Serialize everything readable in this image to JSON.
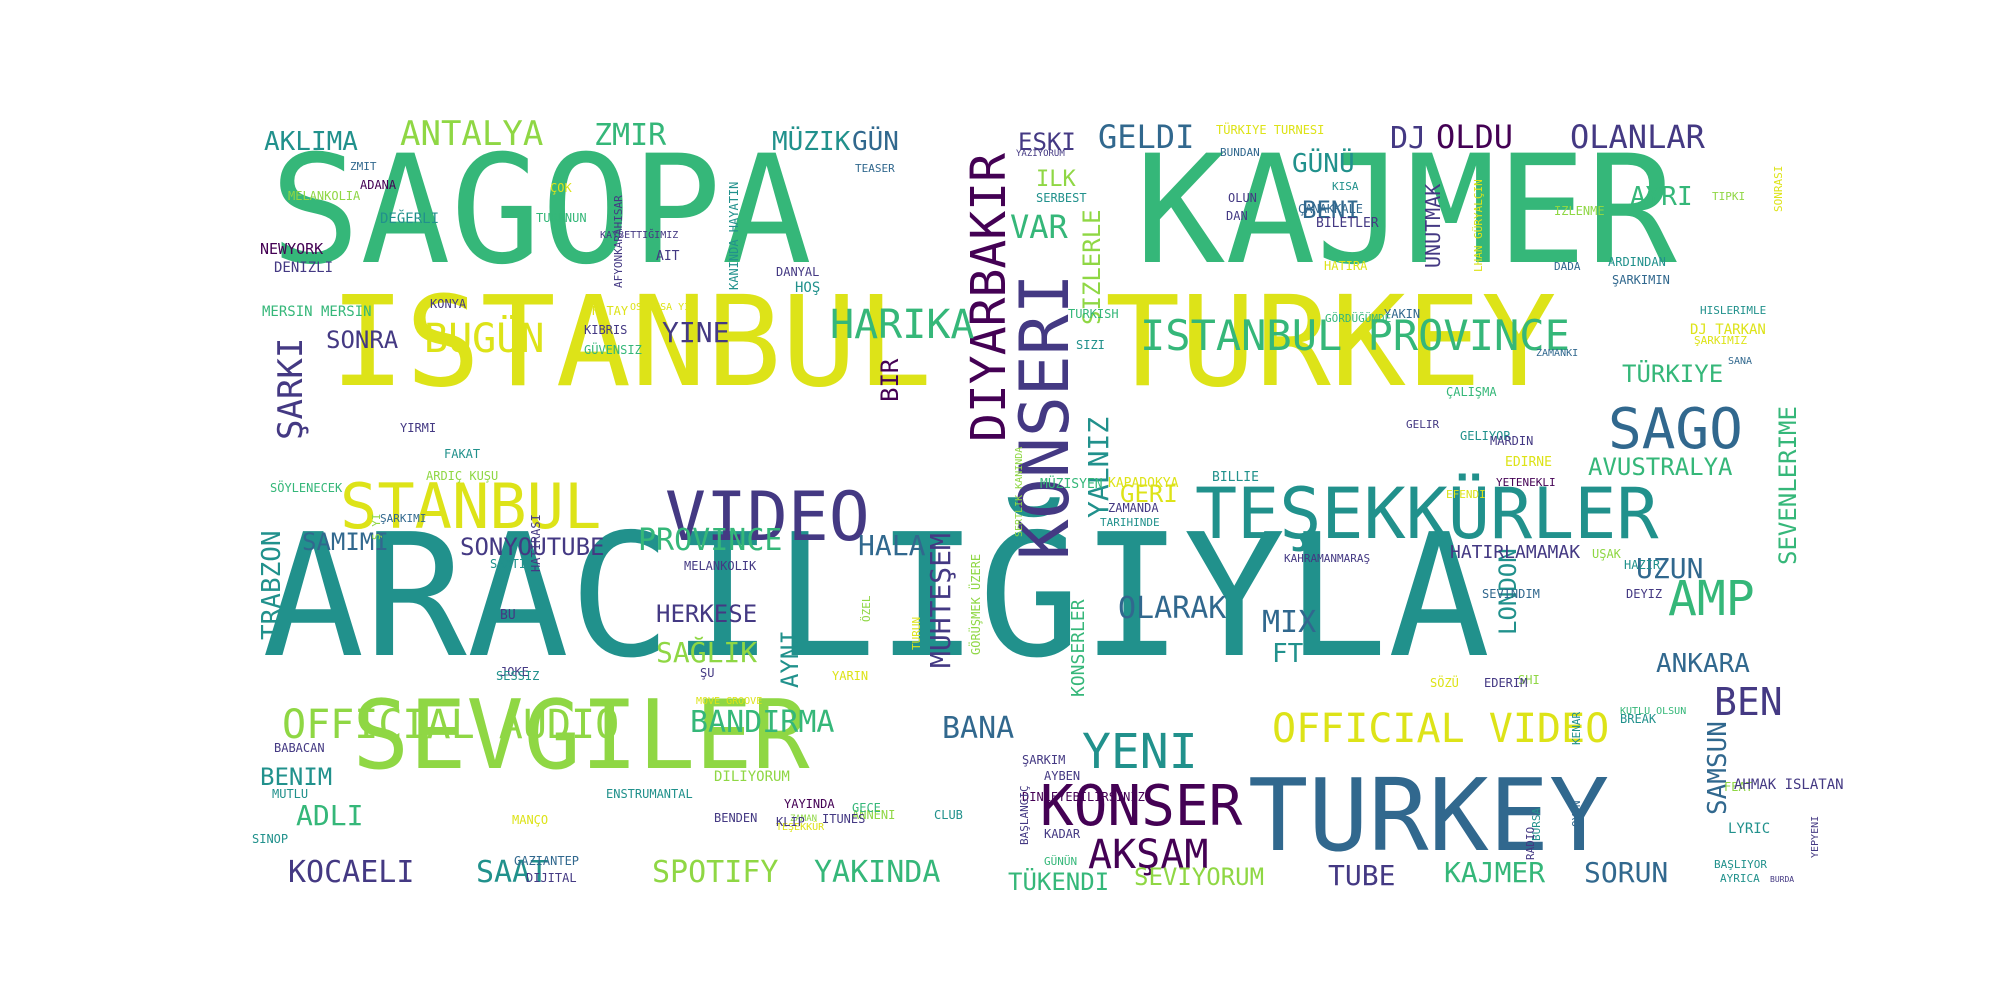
{
  "palette": {
    "yellow": "#dde318",
    "lime": "#8fd744",
    "green": "#35b779",
    "teal": "#21918c",
    "blue": "#31688e",
    "indigo": "#443983",
    "purple": "#440154"
  },
  "words": [
    {
      "text": "SAGOPA",
      "color": "green",
      "weight": 100
    },
    {
      "text": "KAJMER",
      "color": "green",
      "weight": 100
    },
    {
      "text": "ISTANBUL",
      "color": "yellow",
      "weight": 86
    },
    {
      "text": "TURKEY",
      "color": "yellow",
      "weight": 86
    },
    {
      "text": "ARACILIĞIYLA",
      "color": "teal",
      "weight": 98
    },
    {
      "text": "SEVGILER",
      "color": "lime",
      "weight": 72
    },
    {
      "text": "TURKEY",
      "color": "blue",
      "weight": 72
    },
    {
      "text": "VIDEO",
      "color": "indigo",
      "weight": 48
    },
    {
      "text": "TEŞEKKÜRLER",
      "color": "teal",
      "weight": 48
    },
    {
      "text": "STANBUL",
      "color": "yellow",
      "weight": 44
    },
    {
      "text": "KONSERI",
      "color": "indigo",
      "weight": 50
    },
    {
      "text": "ISTANBUL PROVINCE",
      "color": "green",
      "weight": 30
    },
    {
      "text": "SAGO",
      "color": "blue",
      "weight": 38
    },
    {
      "text": "DIYARBAKIR",
      "color": "purple",
      "weight": 32
    },
    {
      "text": "OFFICIAL AUDIO",
      "color": "lime",
      "weight": 28
    },
    {
      "text": "OFFICIAL VIDEO",
      "color": "yellow",
      "weight": 28
    },
    {
      "text": "KONSER",
      "color": "purple",
      "weight": 38
    },
    {
      "text": "YENI",
      "color": "teal",
      "weight": 34
    },
    {
      "text": "AKŞAM",
      "color": "purple",
      "weight": 30
    },
    {
      "text": "AMP",
      "color": "green",
      "weight": 34
    },
    {
      "text": "BEN",
      "color": "indigo",
      "weight": 28
    },
    {
      "text": "HARIKA",
      "color": "green",
      "weight": 26
    },
    {
      "text": "BUGÜN",
      "color": "yellow",
      "weight": 26
    },
    {
      "text": "ANTALYA",
      "color": "lime",
      "weight": 22
    },
    {
      "text": "ZMIR",
      "color": "green",
      "weight": 22
    },
    {
      "text": "AKLIMA",
      "color": "teal",
      "weight": 20
    },
    {
      "text": "MÜZIK",
      "color": "teal",
      "weight": 20
    },
    {
      "text": "GÜN",
      "color": "blue",
      "weight": 20
    },
    {
      "text": "ESKI",
      "color": "indigo",
      "weight": 18
    },
    {
      "text": "GELDI",
      "color": "blue",
      "weight": 22
    },
    {
      "text": "DJ",
      "color": "indigo",
      "weight": 22
    },
    {
      "text": "OLDU",
      "color": "purple",
      "weight": 22
    },
    {
      "text": "OLANLAR",
      "color": "indigo",
      "weight": 22
    },
    {
      "text": "GÜNÜ",
      "color": "teal",
      "weight": 20
    },
    {
      "text": "BENI",
      "color": "blue",
      "weight": 18
    },
    {
      "text": "AYRI",
      "color": "green",
      "weight": 18
    },
    {
      "text": "VAR",
      "color": "green",
      "weight": 22
    },
    {
      "text": "ILK",
      "color": "lime",
      "weight": 16
    },
    {
      "text": "UNUTMAK",
      "color": "indigo",
      "weight": 16
    },
    {
      "text": "ŞARKI",
      "color": "indigo",
      "weight": 26
    },
    {
      "text": "SONRA",
      "color": "indigo",
      "weight": 18
    },
    {
      "text": "YINE",
      "color": "indigo",
      "weight": 20
    },
    {
      "text": "BIR",
      "color": "purple",
      "weight": 16
    },
    {
      "text": "TÜRKIYE",
      "color": "green",
      "weight": 18
    },
    {
      "text": "AVUSTRALYA",
      "color": "green",
      "weight": 18
    },
    {
      "text": "SEVENLERIME",
      "color": "green",
      "weight": 18
    },
    {
      "text": "UZUN",
      "color": "blue",
      "weight": 20
    },
    {
      "text": "ANKARA",
      "color": "blue",
      "weight": 18
    },
    {
      "text": "SAMSUN",
      "color": "blue",
      "weight": 18
    },
    {
      "text": "MIX",
      "color": "blue",
      "weight": 20
    },
    {
      "text": "FT",
      "color": "teal",
      "weight": 20
    },
    {
      "text": "LONDON",
      "color": "teal",
      "weight": 18
    },
    {
      "text": "OLARAK",
      "color": "blue",
      "weight": 20
    },
    {
      "text": "GERI",
      "color": "yellow",
      "weight": 18
    },
    {
      "text": "YALNIZ",
      "color": "teal",
      "weight": 20
    },
    {
      "text": "SIZLERLE",
      "color": "lime",
      "weight": 18
    },
    {
      "text": "SAMIMI",
      "color": "blue",
      "weight": 18
    },
    {
      "text": "SONYOUTUBE",
      "color": "indigo",
      "weight": 18
    },
    {
      "text": "PROVINCE",
      "color": "green",
      "weight": 20
    },
    {
      "text": "HALA",
      "color": "blue",
      "weight": 20
    },
    {
      "text": "HERKESE",
      "color": "indigo",
      "weight": 18
    },
    {
      "text": "SAĞLIK",
      "color": "lime",
      "weight": 20
    },
    {
      "text": "AYNI",
      "color": "teal",
      "weight": 18
    },
    {
      "text": "MUHTEŞEM",
      "color": "indigo",
      "weight": 20
    },
    {
      "text": "KONSERLER",
      "color": "green",
      "weight": 14
    },
    {
      "text": "TRABZON",
      "color": "teal",
      "weight": 18
    },
    {
      "text": "BANDIRMA",
      "color": "green",
      "weight": 22
    },
    {
      "text": "BANA",
      "color": "blue",
      "weight": 22
    },
    {
      "text": "BENIM",
      "color": "teal",
      "weight": 18
    },
    {
      "text": "ADLI",
      "color": "green",
      "weight": 20
    },
    {
      "text": "KOCAELI",
      "color": "indigo",
      "weight": 22
    },
    {
      "text": "SAAT",
      "color": "teal",
      "weight": 22
    },
    {
      "text": "SPOTIFY",
      "color": "lime",
      "weight": 22
    },
    {
      "text": "YAKINDA",
      "color": "green",
      "weight": 22
    },
    {
      "text": "TÜKENDI",
      "color": "green",
      "weight": 18
    },
    {
      "text": "SEVIYORUM",
      "color": "lime",
      "weight": 18
    },
    {
      "text": "TUBE",
      "color": "indigo",
      "weight": 18
    },
    {
      "text": "KAJMER",
      "color": "green",
      "weight": 20
    },
    {
      "text": "SORUN",
      "color": "blue",
      "weight": 20
    },
    {
      "text": "HATIRLAMAMAK",
      "color": "indigo",
      "weight": 14
    },
    {
      "text": "KAHRAMANMARAŞ",
      "color": "indigo",
      "weight": 10
    },
    {
      "text": "MELANKOLIA",
      "color": "lime",
      "weight": 10
    },
    {
      "text": "ZMIT",
      "color": "blue",
      "weight": 9
    },
    {
      "text": "ADANA",
      "color": "purple",
      "weight": 10
    },
    {
      "text": "DEĞERLI",
      "color": "teal",
      "weight": 11
    },
    {
      "text": "NEWYORK",
      "color": "purple",
      "weight": 11
    },
    {
      "text": "DENIZLI",
      "color": "indigo",
      "weight": 11
    },
    {
      "text": "MERSIN MERSIN",
      "color": "green",
      "weight": 11
    },
    {
      "text": "KONYA",
      "color": "indigo",
      "weight": 10
    },
    {
      "text": "HATAY",
      "color": "yellow",
      "weight": 10
    },
    {
      "text": "KIBRIS",
      "color": "indigo",
      "weight": 10
    },
    {
      "text": "GÜVENSIZ",
      "color": "green",
      "weight": 10
    },
    {
      "text": "ÇOK",
      "color": "yellow",
      "weight": 10
    },
    {
      "text": "TURUNUN",
      "color": "green",
      "weight": 10
    },
    {
      "text": "AFYONKARAHISAR",
      "color": "indigo",
      "weight": 9
    },
    {
      "text": "AIT",
      "color": "indigo",
      "weight": 10
    },
    {
      "text": "KANINDA HAYATIN",
      "color": "teal",
      "weight": 10
    },
    {
      "text": "DANYAL",
      "color": "indigo",
      "weight": 10
    },
    {
      "text": "HOŞ",
      "color": "teal",
      "weight": 11
    },
    {
      "text": "TEASER",
      "color": "blue",
      "weight": 9
    },
    {
      "text": "YAZIYORUM",
      "color": "indigo",
      "weight": 8
    },
    {
      "text": "SERBEST",
      "color": "teal",
      "weight": 10
    },
    {
      "text": "TÜRKIYE TURNESI",
      "color": "yellow",
      "weight": 10
    },
    {
      "text": "BUNDAN",
      "color": "blue",
      "weight": 9
    },
    {
      "text": "OLUN",
      "color": "indigo",
      "weight": 10
    },
    {
      "text": "DAN",
      "color": "indigo",
      "weight": 10
    },
    {
      "text": "ÇANAKKALE",
      "color": "blue",
      "weight": 10
    },
    {
      "text": "KISA",
      "color": "teal",
      "weight": 9
    },
    {
      "text": "BILETLER",
      "color": "indigo",
      "weight": 10
    },
    {
      "text": "HATIRA",
      "color": "yellow",
      "weight": 10
    },
    {
      "text": "LHAN GÜRYALÇIN",
      "color": "yellow",
      "weight": 9
    },
    {
      "text": "IZLENME",
      "color": "lime",
      "weight": 10
    },
    {
      "text": "TIPKI",
      "color": "lime",
      "weight": 9
    },
    {
      "text": "SONRASI",
      "color": "yellow",
      "weight": 9
    },
    {
      "text": "DADA",
      "color": "blue",
      "weight": 9
    },
    {
      "text": "ARDINDAN",
      "color": "teal",
      "weight": 10
    },
    {
      "text": "ŞARKIMIN",
      "color": "blue",
      "weight": 10
    },
    {
      "text": "TURKISH",
      "color": "green",
      "weight": 10
    },
    {
      "text": "YAKIN",
      "color": "blue",
      "weight": 10
    },
    {
      "text": "SIZI",
      "color": "teal",
      "weight": 10
    },
    {
      "text": "GÖRDÜĞÜMDE",
      "color": "green",
      "weight": 8
    },
    {
      "text": "HISLERIMLE",
      "color": "teal",
      "weight": 8
    },
    {
      "text": "DJ TARKAN",
      "color": "yellow",
      "weight": 10
    },
    {
      "text": "ŞARKIMIZ",
      "color": "yellow",
      "weight": 8
    },
    {
      "text": "SANA",
      "color": "blue",
      "weight": 8
    },
    {
      "text": "ZAMANKI",
      "color": "blue",
      "weight": 8
    },
    {
      "text": "KAYBETTIĞIMIZ",
      "color": "indigo",
      "weight": 8
    },
    {
      "text": "OSIBISA YI",
      "color": "yellow",
      "weight": 8
    },
    {
      "text": "ÇALIŞMA",
      "color": "green",
      "weight": 10
    },
    {
      "text": "GELIR",
      "color": "indigo",
      "weight": 9
    },
    {
      "text": "GELIYOR",
      "color": "teal",
      "weight": 10
    },
    {
      "text": "MARDIN",
      "color": "indigo",
      "weight": 10
    },
    {
      "text": "EDIRNE",
      "color": "yellow",
      "weight": 10
    },
    {
      "text": "YIRMI",
      "color": "indigo",
      "weight": 10
    },
    {
      "text": "FAKAT",
      "color": "teal",
      "weight": 10
    },
    {
      "text": "ARDIÇ KUŞU",
      "color": "lime",
      "weight": 9
    },
    {
      "text": "ŞARKIMI",
      "color": "blue",
      "weight": 9
    },
    {
      "text": "Ş YI",
      "color": "lime",
      "weight": 8
    },
    {
      "text": "SÖYLENECEK",
      "color": "green",
      "weight": 10
    },
    {
      "text": "MÜZISYEN",
      "color": "green",
      "weight": 10
    },
    {
      "text": "KAPADOKYA",
      "color": "yellow",
      "weight": 10
    },
    {
      "text": "BILLIE",
      "color": "teal",
      "weight": 10
    },
    {
      "text": "EFENDI",
      "color": "yellow",
      "weight": 8
    },
    {
      "text": "YETENEKLI",
      "color": "purple",
      "weight": 9
    },
    {
      "text": "ZAMANDA",
      "color": "indigo",
      "weight": 9
    },
    {
      "text": "TARIHINDE",
      "color": "teal",
      "weight": 10
    },
    {
      "text": "HAZIR",
      "color": "teal",
      "weight": 10
    },
    {
      "text": "UŞAK",
      "color": "lime",
      "weight": 9
    },
    {
      "text": "DEYIZ",
      "color": "indigo",
      "weight": 9
    },
    {
      "text": "SEVINDIM",
      "color": "blue",
      "weight": 9
    },
    {
      "text": "SAATI",
      "color": "teal",
      "weight": 9
    },
    {
      "text": "HATIRASI",
      "color": "indigo",
      "weight": 9
    },
    {
      "text": "MELANKOLIK",
      "color": "indigo",
      "weight": 9
    },
    {
      "text": "JOKE",
      "color": "indigo",
      "weight": 9
    },
    {
      "text": "BU",
      "color": "indigo",
      "weight": 10
    },
    {
      "text": "ŞU",
      "color": "indigo",
      "weight": 10
    },
    {
      "text": "SESSIZ",
      "color": "teal",
      "weight": 10
    },
    {
      "text": "YARIN",
      "color": "yellow",
      "weight": 10
    },
    {
      "text": "ÖZEL",
      "color": "lime",
      "weight": 9
    },
    {
      "text": "TURUN",
      "color": "yellow",
      "weight": 9
    },
    {
      "text": "GÖRÜŞMEK ÜZERE",
      "color": "lime",
      "weight": 10
    },
    {
      "text": "SERTLIK KANINDA",
      "color": "lime",
      "weight": 10
    },
    {
      "text": "SHI",
      "color": "lime",
      "weight": 9
    },
    {
      "text": "SÖZÜ",
      "color": "yellow",
      "weight": 8
    },
    {
      "text": "EDERIM",
      "color": "indigo",
      "weight": 10
    },
    {
      "text": "KENAR",
      "color": "teal",
      "weight": 10
    },
    {
      "text": "BREAK",
      "color": "teal",
      "weight": 10
    },
    {
      "text": "KUTLU OLSUN",
      "color": "green",
      "weight": 9
    },
    {
      "text": "OYUN",
      "color": "blue",
      "weight": 10
    },
    {
      "text": "BABACAN",
      "color": "indigo",
      "weight": 8
    },
    {
      "text": "MOVE GROOVE",
      "color": "yellow",
      "weight": 9
    },
    {
      "text": "DILIYORUM",
      "color": "lime",
      "weight": 10
    },
    {
      "text": "AYBEN",
      "color": "indigo",
      "weight": 8
    },
    {
      "text": "DINLEYEBILIRSINIZ",
      "color": "purple",
      "weight": 11
    },
    {
      "text": "ŞARKIM",
      "color": "indigo",
      "weight": 9
    },
    {
      "text": "FEAT",
      "color": "lime",
      "weight": 10
    },
    {
      "text": "YEPYENI",
      "color": "indigo",
      "weight": 10
    },
    {
      "text": "MUTLU",
      "color": "teal",
      "weight": 10
    },
    {
      "text": "ENSTRUMANTAL",
      "color": "teal",
      "weight": 8
    },
    {
      "text": "YAYINDA",
      "color": "purple",
      "weight": 10
    },
    {
      "text": "TEŞEKKÜR",
      "color": "yellow",
      "weight": 10
    },
    {
      "text": "ZAMAN",
      "color": "lime",
      "weight": 9
    },
    {
      "text": "ANNENI",
      "color": "lime",
      "weight": 8
    },
    {
      "text": "ITUNES",
      "color": "indigo",
      "weight": 10
    },
    {
      "text": "BENDEN",
      "color": "indigo",
      "weight": 10
    },
    {
      "text": "KLIP",
      "color": "indigo",
      "weight": 10
    },
    {
      "text": "GECE",
      "color": "green",
      "weight": 10
    },
    {
      "text": "CLUB",
      "color": "teal",
      "weight": 10
    },
    {
      "text": "MANÇO",
      "color": "yellow",
      "weight": 10
    },
    {
      "text": "SINOP",
      "color": "teal",
      "weight": 10
    },
    {
      "text": "GAZIANTEP",
      "color": "blue",
      "weight": 10
    },
    {
      "text": "DIJITAL",
      "color": "indigo",
      "weight": 10
    },
    {
      "text": "BAŞLANGIÇ",
      "color": "indigo",
      "weight": 10
    },
    {
      "text": "GÜNÜN",
      "color": "green",
      "weight": 9
    },
    {
      "text": "KADAR",
      "color": "indigo",
      "weight": 9
    },
    {
      "text": "BURSA",
      "color": "teal",
      "weight": 10
    },
    {
      "text": "RADIO",
      "color": "indigo",
      "weight": 9
    },
    {
      "text": "AHMAK ISLATAN",
      "color": "indigo",
      "weight": 9
    },
    {
      "text": "LYRIC",
      "color": "teal",
      "weight": 10
    },
    {
      "text": "BAŞLIYOR",
      "color": "teal",
      "weight": 10
    },
    {
      "text": "AYRICA",
      "color": "teal",
      "weight": 9
    },
    {
      "text": "BURDA",
      "color": "indigo",
      "weight": 9
    },
    {
      "text": "AMCA",
      "color": "purple",
      "weight": 7
    }
  ]
}
